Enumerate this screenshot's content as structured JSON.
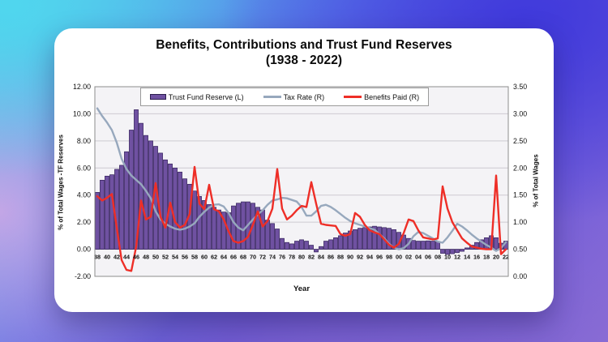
{
  "page": {
    "title_line1": "Benefits, Contributions and Trust Fund Reserves",
    "title_line2": "(1938 - 2022)"
  },
  "colors": {
    "bar_fill": "#6F51A1",
    "bar_stroke": "#33205A",
    "tax_rate_line": "#97A8BD",
    "benefits_line": "#EE2E27",
    "plot_bg": "#F4F3F6",
    "grid": "#CDCAD1",
    "plot_border": "#8C8C8C",
    "card_bg": "#FFFFFF",
    "text": "#111111"
  },
  "axes": {
    "left_label": "% of Total Wages -TF Reserves",
    "right_label": "% of Total Wages",
    "x_label": "Year",
    "left_ticks": [
      "12.00",
      "10.00",
      "8.00",
      "6.00",
      "4.00",
      "2.00",
      "0.00",
      "-2.00"
    ],
    "right_ticks": [
      "3.50",
      "3.00",
      "2.50",
      "2.00",
      "1.50",
      "1.00",
      "0.50",
      "0.00"
    ]
  },
  "legend": {
    "items": [
      {
        "label": "Trust Fund Reserve (L)",
        "type": "bar"
      },
      {
        "label": "Tax Rate (R)",
        "type": "line"
      },
      {
        "label": "Benefits Paid (R)",
        "type": "line"
      }
    ]
  },
  "chart_data": {
    "type": "bar+line combo",
    "title": "Benefits, Contributions and Trust Fund Reserves (1938 - 2022)",
    "xlabel": "Year",
    "ylabel_left": "% of Total Wages -TF Reserves",
    "ylabel_right": "% of Total Wages",
    "left_axis_range": [
      -2,
      12
    ],
    "right_axis_range": [
      0,
      3.5
    ],
    "grid": true,
    "legend_position": "top-center",
    "x_tick_interval": 2,
    "x": [
      1938,
      1939,
      1940,
      1941,
      1942,
      1943,
      1944,
      1945,
      1946,
      1947,
      1948,
      1949,
      1950,
      1951,
      1952,
      1953,
      1954,
      1955,
      1956,
      1957,
      1958,
      1959,
      1960,
      1961,
      1962,
      1963,
      1964,
      1965,
      1966,
      1967,
      1968,
      1969,
      1970,
      1971,
      1972,
      1973,
      1974,
      1975,
      1976,
      1977,
      1978,
      1979,
      1980,
      1981,
      1982,
      1983,
      1984,
      1985,
      1986,
      1987,
      1988,
      1989,
      1990,
      1991,
      1992,
      1993,
      1994,
      1995,
      1996,
      1997,
      1998,
      1999,
      2000,
      2001,
      2002,
      2003,
      2004,
      2005,
      2006,
      2007,
      2008,
      2009,
      2010,
      2011,
      2012,
      2013,
      2014,
      2015,
      2016,
      2017,
      2018,
      2019,
      2020,
      2021,
      2022
    ],
    "x_tick_labels": [
      "38",
      "40",
      "42",
      "44",
      "46",
      "48",
      "50",
      "52",
      "54",
      "56",
      "58",
      "60",
      "62",
      "64",
      "66",
      "68",
      "70",
      "72",
      "74",
      "76",
      "78",
      "80",
      "82",
      "84",
      "86",
      "88",
      "90",
      "92",
      "94",
      "96",
      "98",
      "00",
      "02",
      "04",
      "06",
      "08",
      "10",
      "12",
      "14",
      "16",
      "18",
      "20",
      "22"
    ],
    "series": [
      {
        "name": "Trust Fund Reserve (L)",
        "type": "bar",
        "axis": "left",
        "values": [
          4.2,
          5.1,
          5.4,
          5.5,
          5.9,
          6.2,
          7.2,
          8.8,
          10.3,
          9.3,
          8.4,
          8.0,
          7.6,
          7.1,
          6.6,
          6.3,
          6.0,
          5.7,
          5.2,
          4.8,
          4.3,
          3.9,
          3.6,
          3.3,
          3.1,
          2.9,
          2.75,
          2.7,
          3.2,
          3.4,
          3.5,
          3.5,
          3.4,
          3.1,
          2.9,
          2.15,
          1.9,
          1.5,
          0.8,
          0.5,
          0.4,
          0.6,
          0.7,
          0.6,
          0.3,
          -0.2,
          0.2,
          0.6,
          0.7,
          0.85,
          1.0,
          1.2,
          1.35,
          1.45,
          1.55,
          1.6,
          1.65,
          1.7,
          1.65,
          1.6,
          1.55,
          1.45,
          1.25,
          1.05,
          0.8,
          0.65,
          0.6,
          0.6,
          0.62,
          0.6,
          0.55,
          -0.3,
          -0.38,
          -0.33,
          -0.25,
          -0.15,
          0.1,
          0.3,
          0.5,
          0.7,
          0.85,
          1.0,
          0.85,
          0.45,
          0.6
        ]
      },
      {
        "name": "Tax Rate (R)",
        "type": "line",
        "axis": "right",
        "values": [
          3.1,
          2.96,
          2.84,
          2.7,
          2.47,
          2.17,
          1.98,
          1.86,
          1.78,
          1.7,
          1.58,
          1.44,
          1.2,
          1.05,
          0.97,
          0.92,
          0.88,
          0.86,
          0.88,
          0.92,
          0.98,
          1.1,
          1.19,
          1.27,
          1.32,
          1.33,
          1.29,
          1.17,
          1.0,
          0.9,
          0.85,
          0.95,
          1.05,
          1.14,
          1.22,
          1.32,
          1.4,
          1.42,
          1.45,
          1.44,
          1.41,
          1.38,
          1.28,
          1.12,
          1.12,
          1.2,
          1.3,
          1.32,
          1.28,
          1.22,
          1.15,
          1.08,
          1.02,
          0.98,
          0.95,
          0.92,
          0.89,
          0.86,
          0.78,
          0.7,
          0.6,
          0.53,
          0.5,
          0.52,
          0.6,
          0.74,
          0.82,
          0.8,
          0.75,
          0.7,
          0.64,
          0.62,
          0.72,
          0.84,
          0.97,
          0.92,
          0.85,
          0.77,
          0.7,
          0.64,
          0.58,
          0.53,
          0.47,
          0.52,
          0.63
        ]
      },
      {
        "name": "Benefits Paid (R)",
        "type": "line",
        "axis": "right",
        "values": [
          1.48,
          1.4,
          1.45,
          1.52,
          0.9,
          0.3,
          0.12,
          0.1,
          0.55,
          1.4,
          1.05,
          1.1,
          1.72,
          1.1,
          0.9,
          1.36,
          1.0,
          0.9,
          0.95,
          1.15,
          2.02,
          1.34,
          1.24,
          1.69,
          1.24,
          1.2,
          1.05,
          0.83,
          0.65,
          0.62,
          0.65,
          0.73,
          0.95,
          1.2,
          0.92,
          1.02,
          1.25,
          1.98,
          1.25,
          1.05,
          1.12,
          1.22,
          1.3,
          1.28,
          1.74,
          1.34,
          0.97,
          0.95,
          0.94,
          0.93,
          0.78,
          0.75,
          0.78,
          1.17,
          1.1,
          0.95,
          0.85,
          0.81,
          0.78,
          0.68,
          0.58,
          0.53,
          0.6,
          0.8,
          1.05,
          1.02,
          0.85,
          0.72,
          0.7,
          0.68,
          0.7,
          1.66,
          1.25,
          1.0,
          0.85,
          0.7,
          0.62,
          0.55,
          0.53,
          0.51,
          0.5,
          0.5,
          1.86,
          0.41,
          0.5
        ]
      }
    ]
  }
}
